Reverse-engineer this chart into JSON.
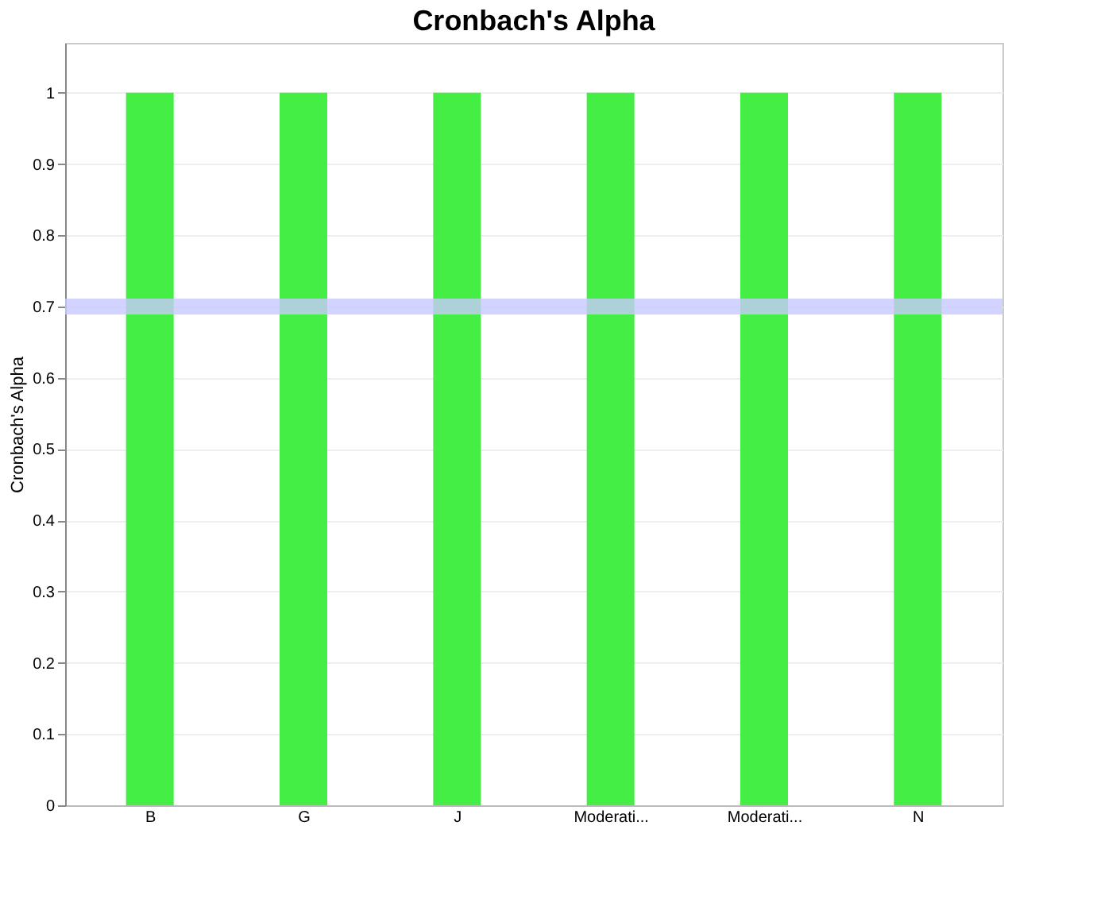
{
  "chart_data": {
    "type": "bar",
    "title": "Cronbach's Alpha",
    "ylabel": "Cronbach's Alpha",
    "categories": [
      "B",
      "G",
      "J",
      "Moderati...",
      "Moderati...",
      "N"
    ],
    "values": [
      1,
      1,
      1,
      1,
      1,
      1
    ],
    "color": "#44ee44",
    "ylim": [
      0,
      1.07
    ],
    "yticks": [
      0,
      0.1,
      0.2,
      0.3,
      0.4,
      0.5,
      0.6,
      0.7,
      0.8,
      0.9,
      1
    ],
    "ref_lines": [
      {
        "axis": "y",
        "value": 0.7,
        "color": "#c8c8ff"
      }
    ],
    "grid": "y"
  }
}
